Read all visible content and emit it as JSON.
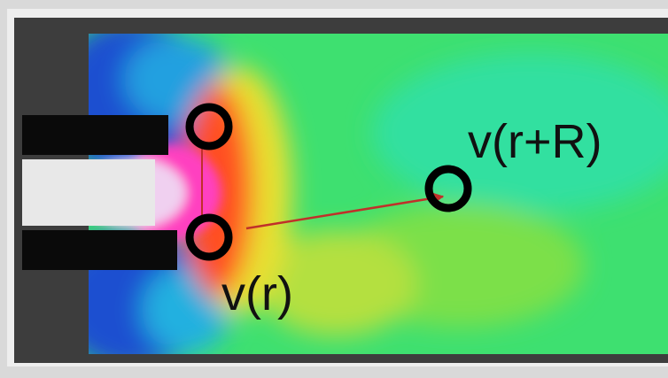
{
  "labels": {
    "far": "v(r+R)",
    "near": "v(r)"
  }
}
